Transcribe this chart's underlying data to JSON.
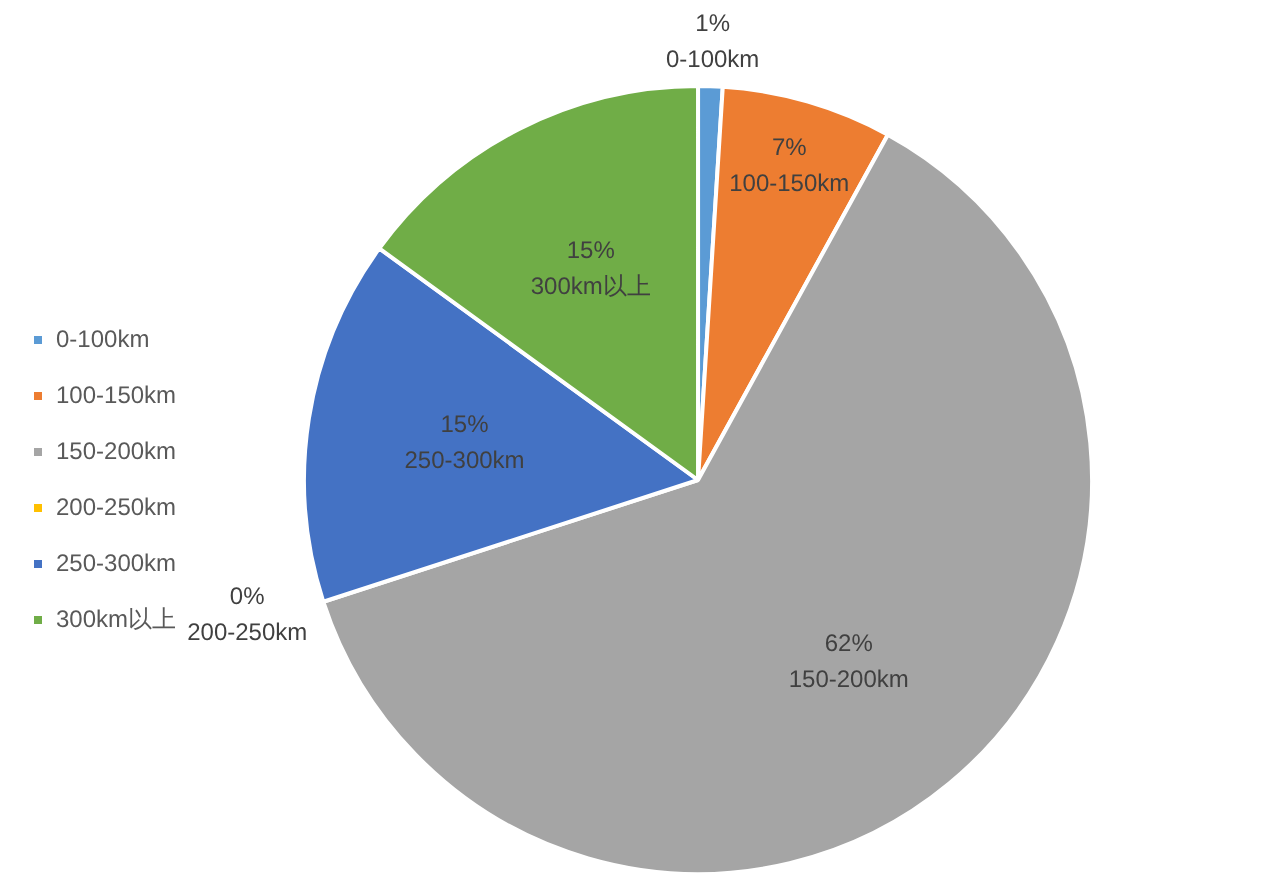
{
  "chart_data": {
    "type": "pie",
    "categories": [
      "0-100km",
      "100-150km",
      "150-200km",
      "200-250km",
      "250-300km",
      "300km以上"
    ],
    "values": [
      1,
      7,
      62,
      0,
      15,
      15
    ],
    "colors": [
      "#5b9bd5",
      "#ed7d31",
      "#a5a5a5",
      "#ffc000",
      "#4472c4",
      "#70ad47"
    ],
    "value_labels": [
      "1%",
      "7%",
      "62%",
      "0%",
      "15%",
      "15%"
    ],
    "legend": "left"
  }
}
